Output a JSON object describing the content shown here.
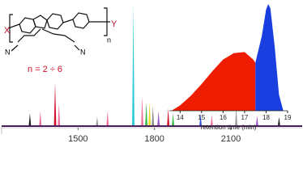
{
  "structure": {
    "left_end": "X",
    "right_end": "Y",
    "nitrile_left": "N",
    "nitrile_right": "N",
    "repeat": "n",
    "range_label": "n = 2 ÷ 6"
  },
  "chart_data": [
    {
      "type": "spectrum",
      "x": [
        1311,
        1352,
        1410,
        1425,
        1575,
        1616,
        1717,
        1752,
        1768,
        1781,
        1794,
        1816,
        1854,
        1873,
        1981,
        2025,
        2121,
        2203,
        2289
      ],
      "values": [
        8,
        10,
        34,
        16,
        5,
        10,
        100,
        22,
        17,
        18,
        14,
        10,
        12,
        8,
        8,
        7,
        14,
        6,
        5
      ],
      "colors": [
        "#222222",
        "#f06ea0",
        "#d0112b",
        "#f06ea0",
        "#9a9a9a",
        "#f06ea0",
        "#28c8d8",
        "#f06ea0",
        "#36b84a",
        "#e8d820",
        "#8a8a8a",
        "#9a55c8",
        "#d0112b",
        "#36b84a",
        "#3355dd",
        "#f06ea0",
        "#9a9a9a",
        "#9a55c8",
        "#222222"
      ],
      "xlim": [
        1200,
        2380
      ],
      "ylim": [
        0,
        100
      ],
      "xticks": [
        1500,
        1800,
        2100
      ],
      "axis_color": "#4a1f5a"
    },
    {
      "type": "area",
      "xlabel": "retention time (min)",
      "series": [
        {
          "color": "#ee1c00",
          "x": [
            13.6,
            14,
            14.5,
            15,
            15.5,
            16,
            16.5,
            17,
            17.4,
            17.5
          ],
          "values": [
            0,
            5,
            14,
            25,
            37,
            48,
            54,
            55,
            48,
            45
          ]
        },
        {
          "color": "#1a3fe0",
          "x": [
            17.5,
            17.8,
            18,
            18.1,
            18.2,
            18.4,
            18.6,
            18.8
          ],
          "values": [
            45,
            70,
            95,
            100,
            96,
            60,
            15,
            0
          ]
        }
      ],
      "xlim": [
        13.5,
        19
      ],
      "ylim": [
        0,
        100
      ],
      "xticks": [
        14,
        15,
        16,
        17,
        18,
        19
      ]
    }
  ]
}
